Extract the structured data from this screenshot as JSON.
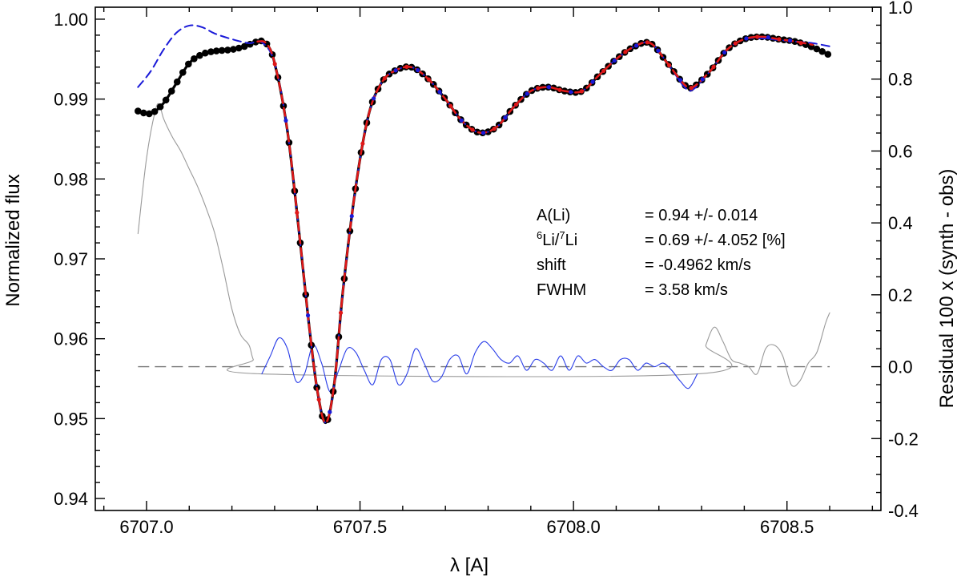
{
  "chart_data": {
    "type": "line",
    "xlabel": "λ [A]",
    "ylabel_left": "Normalized flux",
    "ylabel_right": "Residual 100 x (synth - obs)",
    "xlim": [
      6706.88,
      6708.72
    ],
    "ylim_left": [
      0.9385,
      1.0015
    ],
    "ylim_right": [
      -0.4,
      1.0
    ],
    "x_ticks": [
      6707.0,
      6707.5,
      6708.0,
      6708.5
    ],
    "x_tick_labels": [
      "6707.0",
      "6707.5",
      "6708.0",
      "6708.5"
    ],
    "y_left_ticks": [
      0.94,
      0.95,
      0.96,
      0.97,
      0.98,
      0.99,
      1.0
    ],
    "y_left_tick_labels": [
      "0.94",
      "0.95",
      "0.96",
      "0.97",
      "0.98",
      "0.99",
      "1.00"
    ],
    "y_right_ticks": [
      -0.4,
      -0.2,
      0.0,
      0.2,
      0.4,
      0.6,
      0.8,
      1.0
    ],
    "y_right_tick_labels": [
      "-0.4",
      "-0.2",
      "0.0",
      "0.2",
      "0.4",
      "0.6",
      "0.8",
      "1.0"
    ],
    "grid": false,
    "series": [
      {
        "id": "observed",
        "style": "black line with filled circles",
        "color": "#000000",
        "axis": "left",
        "points": [
          [
            6706.98,
            0.9885
          ],
          [
            6707.01,
            0.9882
          ],
          [
            6707.04,
            0.9895
          ],
          [
            6707.07,
            0.992
          ],
          [
            6707.1,
            0.9945
          ],
          [
            6707.13,
            0.9956
          ],
          [
            6707.16,
            0.996
          ],
          [
            6707.2,
            0.9962
          ],
          [
            6707.23,
            0.9966
          ],
          [
            6707.26,
            0.9972
          ],
          [
            6707.28,
            0.997
          ],
          [
            6707.3,
            0.9945
          ],
          [
            6707.33,
            0.986
          ],
          [
            6707.36,
            0.972
          ],
          [
            6707.38,
            0.962
          ],
          [
            6707.4,
            0.9535
          ],
          [
            6707.42,
            0.9495
          ],
          [
            6707.44,
            0.9545
          ],
          [
            6707.46,
            0.966
          ],
          [
            6707.49,
            0.979
          ],
          [
            6707.52,
            0.988
          ],
          [
            6707.55,
            0.992
          ],
          [
            6707.58,
            0.9935
          ],
          [
            6707.62,
            0.994
          ],
          [
            6707.66,
            0.9925
          ],
          [
            6707.7,
            0.99
          ],
          [
            6707.74,
            0.9872
          ],
          [
            6707.78,
            0.9858
          ],
          [
            6707.82,
            0.9865
          ],
          [
            6707.86,
            0.989
          ],
          [
            6707.9,
            0.991
          ],
          [
            6707.94,
            0.9915
          ],
          [
            6707.98,
            0.991
          ],
          [
            6708.02,
            0.991
          ],
          [
            6708.06,
            0.993
          ],
          [
            6708.1,
            0.995
          ],
          [
            6708.14,
            0.9965
          ],
          [
            6708.18,
            0.997
          ],
          [
            6708.22,
            0.9945
          ],
          [
            6708.26,
            0.9918
          ],
          [
            6708.28,
            0.9915
          ],
          [
            6708.32,
            0.9935
          ],
          [
            6708.36,
            0.9962
          ],
          [
            6708.4,
            0.9975
          ],
          [
            6708.44,
            0.9978
          ],
          [
            6708.48,
            0.9975
          ],
          [
            6708.52,
            0.9972
          ],
          [
            6708.56,
            0.9965
          ],
          [
            6708.6,
            0.9955
          ]
        ]
      },
      {
        "id": "synthetic-blue",
        "style": "blue dashed line",
        "color": "#1a1ad8",
        "axis": "left",
        "points": [
          [
            6706.98,
            0.9915
          ],
          [
            6707.01,
            0.9935
          ],
          [
            6707.04,
            0.9962
          ],
          [
            6707.07,
            0.9983
          ],
          [
            6707.1,
            0.9992
          ],
          [
            6707.13,
            0.999
          ],
          [
            6707.16,
            0.9982
          ],
          [
            6707.2,
            0.9975
          ],
          [
            6707.24,
            0.997
          ],
          [
            6707.27,
            0.9971
          ],
          [
            6707.3,
            0.9945
          ],
          [
            6707.33,
            0.986
          ],
          [
            6707.36,
            0.972
          ],
          [
            6707.38,
            0.962
          ],
          [
            6707.4,
            0.9535
          ],
          [
            6707.42,
            0.9495
          ],
          [
            6707.44,
            0.9545
          ],
          [
            6707.46,
            0.966
          ],
          [
            6707.49,
            0.979
          ],
          [
            6707.52,
            0.988
          ],
          [
            6707.55,
            0.992
          ],
          [
            6707.58,
            0.9935
          ],
          [
            6707.62,
            0.994
          ],
          [
            6707.66,
            0.9925
          ],
          [
            6707.7,
            0.99
          ],
          [
            6707.74,
            0.9872
          ],
          [
            6707.78,
            0.9858
          ],
          [
            6707.82,
            0.9865
          ],
          [
            6707.86,
            0.989
          ],
          [
            6707.9,
            0.991
          ],
          [
            6707.94,
            0.9915
          ],
          [
            6707.98,
            0.991
          ],
          [
            6708.02,
            0.991
          ],
          [
            6708.06,
            0.993
          ],
          [
            6708.1,
            0.995
          ],
          [
            6708.14,
            0.9965
          ],
          [
            6708.18,
            0.997
          ],
          [
            6708.22,
            0.9945
          ],
          [
            6708.26,
            0.9915
          ],
          [
            6708.28,
            0.9912
          ],
          [
            6708.32,
            0.9935
          ],
          [
            6708.36,
            0.9962
          ],
          [
            6708.4,
            0.9975
          ],
          [
            6708.44,
            0.9976
          ],
          [
            6708.48,
            0.9974
          ],
          [
            6708.52,
            0.9972
          ],
          [
            6708.56,
            0.997
          ],
          [
            6708.6,
            0.9966
          ]
        ]
      },
      {
        "id": "synthetic-red",
        "style": "red dashed line",
        "color": "#e01818",
        "axis": "left",
        "points": [
          [
            6707.26,
            0.9972
          ],
          [
            6707.28,
            0.997
          ],
          [
            6707.3,
            0.9945
          ],
          [
            6707.33,
            0.986
          ],
          [
            6707.36,
            0.972
          ],
          [
            6707.38,
            0.962
          ],
          [
            6707.4,
            0.9535
          ],
          [
            6707.42,
            0.9495
          ],
          [
            6707.44,
            0.9545
          ],
          [
            6707.46,
            0.966
          ],
          [
            6707.49,
            0.979
          ],
          [
            6707.52,
            0.988
          ],
          [
            6707.55,
            0.992
          ],
          [
            6707.58,
            0.9935
          ],
          [
            6707.62,
            0.994
          ],
          [
            6707.66,
            0.9925
          ],
          [
            6707.7,
            0.99
          ],
          [
            6707.74,
            0.9872
          ],
          [
            6707.78,
            0.9858
          ],
          [
            6707.82,
            0.9865
          ],
          [
            6707.86,
            0.989
          ],
          [
            6707.9,
            0.991
          ],
          [
            6707.94,
            0.9915
          ],
          [
            6707.98,
            0.991
          ],
          [
            6708.02,
            0.991
          ],
          [
            6708.06,
            0.993
          ],
          [
            6708.1,
            0.995
          ],
          [
            6708.14,
            0.9965
          ],
          [
            6708.18,
            0.997
          ],
          [
            6708.22,
            0.9945
          ],
          [
            6708.26,
            0.9918
          ],
          [
            6708.28,
            0.9915
          ],
          [
            6708.32,
            0.9935
          ],
          [
            6708.36,
            0.9962
          ],
          [
            6708.4,
            0.9975
          ],
          [
            6708.44,
            0.9978
          ],
          [
            6708.48,
            0.9975
          ],
          [
            6708.52,
            0.9972
          ],
          [
            6708.56,
            0.9968
          ]
        ]
      },
      {
        "id": "residual-outside",
        "style": "thin grey line",
        "color": "#999999",
        "axis": "right",
        "points": [
          [
            6706.98,
            0.37
          ],
          [
            6707.0,
            0.58
          ],
          [
            6707.02,
            0.71
          ],
          [
            6707.03,
            0.73
          ],
          [
            6707.04,
            0.69
          ],
          [
            6707.06,
            0.64
          ],
          [
            6707.08,
            0.6
          ],
          [
            6707.1,
            0.55
          ],
          [
            6707.12,
            0.5
          ],
          [
            6707.14,
            0.44
          ],
          [
            6707.16,
            0.37
          ],
          [
            6707.18,
            0.27
          ],
          [
            6707.2,
            0.16
          ],
          [
            6707.22,
            0.09
          ],
          [
            6707.24,
            0.06
          ],
          [
            6707.25,
            0.02
          ],
          [
            6707.27,
            -0.02
          ],
          [
            6708.29,
            -0.02
          ],
          [
            6708.31,
            0.06
          ],
          [
            6708.33,
            0.11
          ],
          [
            6708.35,
            0.07
          ],
          [
            6708.37,
            0.02
          ],
          [
            6708.39,
            0.01
          ],
          [
            6708.41,
            0.0
          ],
          [
            6708.43,
            -0.02
          ],
          [
            6708.45,
            0.05
          ],
          [
            6708.47,
            0.06
          ],
          [
            6708.49,
            0.03
          ],
          [
            6708.51,
            -0.05
          ],
          [
            6708.53,
            -0.04
          ],
          [
            6708.55,
            0.01
          ],
          [
            6708.57,
            0.04
          ],
          [
            6708.59,
            0.12
          ],
          [
            6708.6,
            0.15
          ]
        ]
      },
      {
        "id": "residual-fit",
        "style": "thin blue line",
        "color": "#2a3ee8",
        "axis": "right",
        "points": [
          [
            6707.27,
            -0.02
          ],
          [
            6707.29,
            0.03
          ],
          [
            6707.31,
            0.08
          ],
          [
            6707.33,
            0.05
          ],
          [
            6707.35,
            -0.04
          ],
          [
            6707.37,
            -0.02
          ],
          [
            6707.39,
            0.06
          ],
          [
            6707.41,
            0.01
          ],
          [
            6707.43,
            -0.07
          ],
          [
            6707.45,
            -0.01
          ],
          [
            6707.47,
            0.05
          ],
          [
            6707.49,
            0.04
          ],
          [
            6707.51,
            -0.01
          ],
          [
            6707.53,
            -0.05
          ],
          [
            6707.55,
            0.02
          ],
          [
            6707.57,
            0.02
          ],
          [
            6707.59,
            -0.05
          ],
          [
            6707.61,
            -0.02
          ],
          [
            6707.63,
            0.05
          ],
          [
            6707.65,
            0.01
          ],
          [
            6707.67,
            -0.04
          ],
          [
            6707.69,
            -0.03
          ],
          [
            6707.71,
            0.02
          ],
          [
            6707.73,
            0.03
          ],
          [
            6707.75,
            -0.02
          ],
          [
            6707.77,
            0.04
          ],
          [
            6707.79,
            0.07
          ],
          [
            6707.81,
            0.05
          ],
          [
            6707.83,
            0.02
          ],
          [
            6707.85,
            0.01
          ],
          [
            6707.87,
            0.03
          ],
          [
            6707.89,
            -0.01
          ],
          [
            6707.91,
            0.02
          ],
          [
            6707.93,
            0.01
          ],
          [
            6707.95,
            -0.01
          ],
          [
            6707.97,
            0.03
          ],
          [
            6707.99,
            -0.01
          ],
          [
            6708.01,
            0.03
          ],
          [
            6708.03,
            0.01
          ],
          [
            6708.05,
            0.02
          ],
          [
            6708.07,
            0.0
          ],
          [
            6708.09,
            -0.01
          ],
          [
            6708.11,
            0.02
          ],
          [
            6708.13,
            0.02
          ],
          [
            6708.15,
            -0.01
          ],
          [
            6708.17,
            0.01
          ],
          [
            6708.19,
            0.0
          ],
          [
            6708.21,
            0.01
          ],
          [
            6708.23,
            -0.01
          ],
          [
            6708.25,
            -0.04
          ],
          [
            6708.27,
            -0.06
          ],
          [
            6708.29,
            -0.02
          ]
        ]
      }
    ],
    "reference_line": {
      "axis": "right",
      "y": 0.0,
      "x_range": [
        6706.98,
        6708.6
      ],
      "style": "grey dashed"
    },
    "marker_series": "observed",
    "annotations": [
      {
        "label": "A(Li)",
        "label_sup": "",
        "label_mid": "",
        "label_sup2": "",
        "label_tail": "",
        "value": "=  0.94 +/- 0.014"
      },
      {
        "label": "",
        "label_sup": "6",
        "label_mid": "Li/",
        "label_sup2": "7",
        "label_tail": "Li",
        "value": "=  0.69 +/- 4.052 [%]"
      },
      {
        "label": "shift",
        "label_sup": "",
        "label_mid": "",
        "label_sup2": "",
        "label_tail": "",
        "value": "= -0.4962 km/s"
      },
      {
        "label": "FWHM",
        "label_sup": "",
        "label_mid": "",
        "label_sup2": "",
        "label_tail": "",
        "value": "=  3.58 km/s"
      }
    ]
  }
}
